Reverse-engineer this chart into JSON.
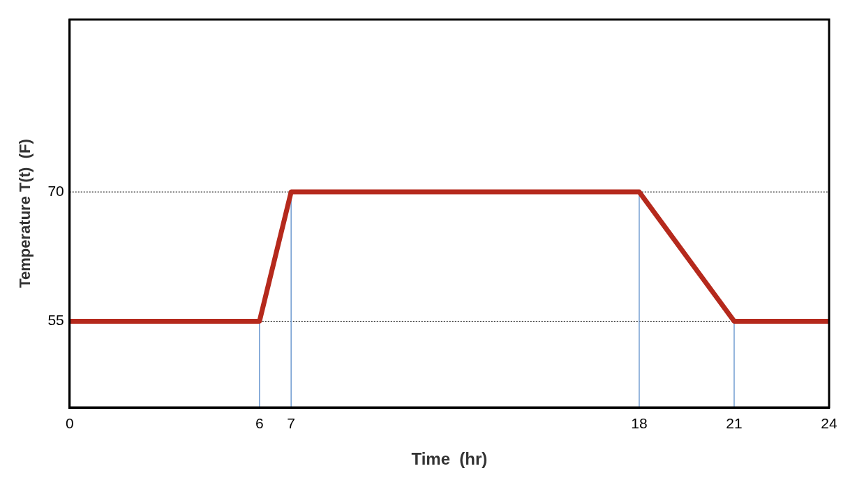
{
  "chart_data": {
    "type": "line",
    "xlabel": "Time  (hr)",
    "ylabel": "Temperature T(t)  (F)",
    "x": [
      0,
      6,
      7,
      18,
      21,
      24
    ],
    "series": [
      {
        "color": "#b5291c",
        "values": [
          55,
          55,
          70,
          70,
          55,
          55
        ]
      }
    ],
    "xlim": [
      0,
      24
    ],
    "xticks": [
      0,
      6,
      7,
      18,
      21,
      24
    ],
    "ylim": [
      45,
      90
    ],
    "yticks": [
      55,
      70
    ],
    "ref_lines": [
      {
        "axis": "y",
        "value": 70,
        "color": "#000000",
        "line_style": "dotted"
      },
      {
        "axis": "y",
        "value": 55,
        "color": "#000000",
        "line_style": "dotted"
      },
      {
        "axis": "x",
        "value": 6,
        "color": "#6f9bd1",
        "line_style": "solid"
      },
      {
        "axis": "x",
        "value": 7,
        "color": "#6f9bd1",
        "line_style": "solid"
      },
      {
        "axis": "x",
        "value": 18,
        "color": "#6f9bd1",
        "line_style": "solid"
      },
      {
        "axis": "x",
        "value": 21,
        "color": "#6f9bd1",
        "line_style": "solid"
      }
    ],
    "grid": false,
    "legend": false,
    "marker": "none",
    "line_style": "solid"
  }
}
